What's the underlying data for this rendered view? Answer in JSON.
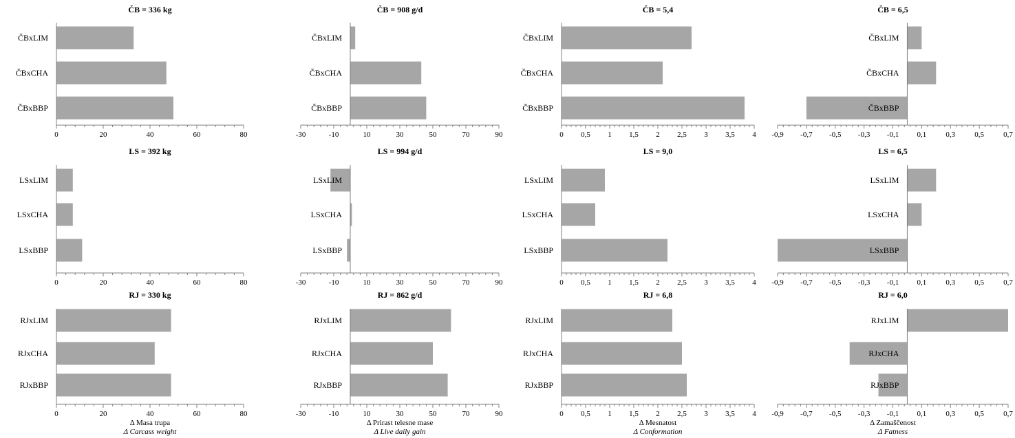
{
  "chart_data": [
    {
      "type": "bar",
      "orientation": "horizontal",
      "title": "ČB = 336 kg",
      "categories": [
        "ČBxLIM",
        "ČBxCHA",
        "ČBxBBP"
      ],
      "values": [
        33,
        47,
        50
      ],
      "xlim": [
        0,
        80
      ],
      "xticks": [
        "0",
        "20",
        "40",
        "60",
        "80"
      ]
    },
    {
      "type": "bar",
      "orientation": "horizontal",
      "title": "ČB = 908 g/d",
      "categories": [
        "ČBxLIM",
        "ČBxCHA",
        "ČBxBBP"
      ],
      "values": [
        3,
        43,
        46
      ],
      "xlim": [
        -30,
        90
      ],
      "xticks": [
        "-30",
        "-10",
        "10",
        "30",
        "50",
        "70",
        "90"
      ]
    },
    {
      "type": "bar",
      "orientation": "horizontal",
      "title": "ČB = 5,4",
      "categories": [
        "ČBxLIM",
        "ČBxCHA",
        "ČBxBBP"
      ],
      "values": [
        2.7,
        2.1,
        3.8
      ],
      "xlim": [
        0,
        4
      ],
      "xticks": [
        "0",
        "0,5",
        "1",
        "1,5",
        "2",
        "2,5",
        "3",
        "3,5",
        "4"
      ]
    },
    {
      "type": "bar",
      "orientation": "horizontal",
      "title": "ČB = 6,5",
      "categories": [
        "ČBxLIM",
        "ČBxCHA",
        "ČBxBBP"
      ],
      "values": [
        0.1,
        0.2,
        -0.7
      ],
      "xlim": [
        -0.9,
        0.7
      ],
      "xticks": [
        "-0,9",
        "-0,7",
        "-0,5",
        "-0,3",
        "-0,1",
        "0,1",
        "0,3",
        "0,5",
        "0,7"
      ]
    },
    {
      "type": "bar",
      "orientation": "horizontal",
      "title": "LS = 392 kg",
      "categories": [
        "LSxLIM",
        "LSxCHA",
        "LSxBBP"
      ],
      "values": [
        7,
        7,
        11
      ],
      "xlim": [
        0,
        80
      ],
      "xticks": [
        "0",
        "20",
        "40",
        "60",
        "80"
      ]
    },
    {
      "type": "bar",
      "orientation": "horizontal",
      "title": "LS = 994 g/d",
      "categories": [
        "LSxLIM",
        "LSxCHA",
        "LSxBBP"
      ],
      "values": [
        -12,
        1,
        -2
      ],
      "xlim": [
        -30,
        90
      ],
      "xticks": [
        "-30",
        "-10",
        "10",
        "30",
        "50",
        "70",
        "90"
      ]
    },
    {
      "type": "bar",
      "orientation": "horizontal",
      "title": "LS = 9,0",
      "categories": [
        "LSxLIM",
        "LSxCHA",
        "LSxBBP"
      ],
      "values": [
        0.9,
        0.7,
        2.2
      ],
      "xlim": [
        0,
        4
      ],
      "xticks": [
        "0",
        "0,5",
        "1",
        "1,5",
        "2",
        "2,5",
        "3",
        "3,5",
        "4"
      ]
    },
    {
      "type": "bar",
      "orientation": "horizontal",
      "title": "LS = 6,5",
      "categories": [
        "LSxLIM",
        "LSxCHA",
        "LSxBBP"
      ],
      "values": [
        0.2,
        0.1,
        -0.9
      ],
      "xlim": [
        -0.9,
        0.7
      ],
      "xticks": [
        "-0,9",
        "-0,7",
        "-0,5",
        "-0,3",
        "-0,1",
        "0,1",
        "0,3",
        "0,5",
        "0,7"
      ]
    },
    {
      "type": "bar",
      "orientation": "horizontal",
      "title": "RJ = 330 kg",
      "categories": [
        "RJxLIM",
        "RJxCHA",
        "RJxBBP"
      ],
      "values": [
        49,
        42,
        49
      ],
      "xlim": [
        0,
        80
      ],
      "xticks": [
        "0",
        "20",
        "40",
        "60",
        "80"
      ],
      "xlabel": "Δ Masa trupa",
      "xlabel2": "Δ Carcass weight"
    },
    {
      "type": "bar",
      "orientation": "horizontal",
      "title": "RJ = 862 g/d",
      "categories": [
        "RJxLIM",
        "RJxCHA",
        "RJxBBP"
      ],
      "values": [
        61,
        50,
        59
      ],
      "xlim": [
        -30,
        90
      ],
      "xticks": [
        "-30",
        "-10",
        "10",
        "30",
        "50",
        "70",
        "90"
      ],
      "xlabel": "Δ Prirast telesne mase",
      "xlabel2": "Δ Live daily gain"
    },
    {
      "type": "bar",
      "orientation": "horizontal",
      "title": "RJ = 6,8",
      "categories": [
        "RJxLIM",
        "RJxCHA",
        "RJxBBP"
      ],
      "values": [
        2.3,
        2.5,
        2.6
      ],
      "xlim": [
        0,
        4
      ],
      "xticks": [
        "0",
        "0,5",
        "1",
        "1,5",
        "2",
        "2,5",
        "3",
        "3,5",
        "4"
      ],
      "xlabel": "Δ Mesnatost",
      "xlabel2": "Δ Conformation"
    },
    {
      "type": "bar",
      "orientation": "horizontal",
      "title": "RJ = 6,0",
      "categories": [
        "RJxLIM",
        "RJxCHA",
        "RJxBBP"
      ],
      "values": [
        0.7,
        -0.4,
        -0.2
      ],
      "xlim": [
        -0.9,
        0.7
      ],
      "xticks": [
        "-0,9",
        "-0,7",
        "-0,5",
        "-0,3",
        "-0,1",
        "0,1",
        "0,3",
        "0,5",
        "0,7"
      ],
      "xlabel": "Δ Zamaščenost",
      "xlabel2": "Δ Fatness"
    }
  ],
  "colors": {
    "bar": "#a6a6a6",
    "axis": "#7f7f7f"
  }
}
